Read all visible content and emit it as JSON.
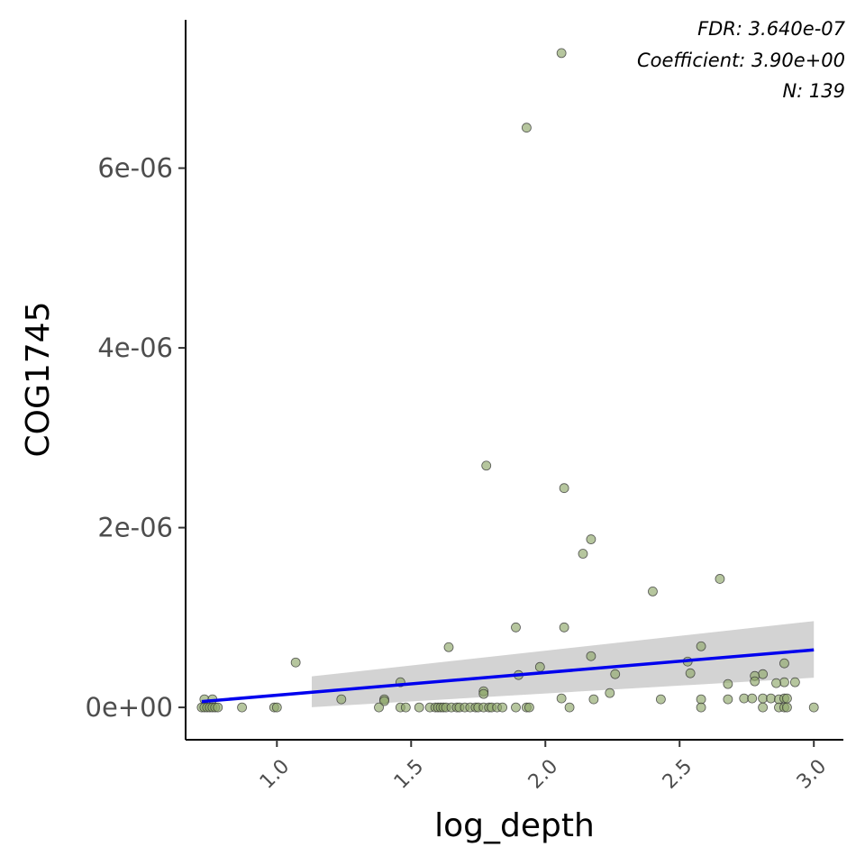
{
  "chart_data": {
    "type": "scatter",
    "xlabel": "log_depth",
    "ylabel": "COG1745",
    "xlim": [
      0.66,
      3.11
    ],
    "ylim": [
      -3.6e-07,
      7.65e-06
    ],
    "x_ticks": [
      1.0,
      1.5,
      2.0,
      2.5,
      3.0
    ],
    "x_tick_labels": [
      "1.0",
      "1.5",
      "2.0",
      "2.5",
      "3.0"
    ],
    "y_ticks": [
      0,
      2e-06,
      4e-06,
      6e-06
    ],
    "y_tick_labels": [
      "0e+00",
      "2e-06",
      "4e-06",
      "6e-06"
    ],
    "grid": false,
    "point_color": "#8fa86a",
    "point_stroke": "#333333",
    "line_color": "#0000ee",
    "band_color": "#c8c8c8",
    "annotations": [
      "FDR: 3.640e-07",
      "Coefficient: 3.90e+00",
      "N: 139"
    ],
    "regression": {
      "x": [
        0.72,
        3.0
      ],
      "y": [
        6.5e-08,
        6.4e-07
      ],
      "band_x": [
        1.13,
        3.0
      ],
      "band_lower": [
        2e-09,
        3.3e-07
      ],
      "band_upper": [
        3.45e-07,
        9.6e-07
      ]
    },
    "points": [
      {
        "x": 2.06,
        "y": 7.28e-06
      },
      {
        "x": 1.93,
        "y": 6.45e-06
      },
      {
        "x": 1.78,
        "y": 2.69e-06
      },
      {
        "x": 2.07,
        "y": 2.44e-06
      },
      {
        "x": 2.17,
        "y": 1.87e-06
      },
      {
        "x": 2.14,
        "y": 1.71e-06
      },
      {
        "x": 2.65,
        "y": 1.43e-06
      },
      {
        "x": 2.4,
        "y": 1.29e-06
      },
      {
        "x": 1.89,
        "y": 8.9e-07
      },
      {
        "x": 2.07,
        "y": 8.9e-07
      },
      {
        "x": 2.58,
        "y": 6.8e-07
      },
      {
        "x": 1.64,
        "y": 6.7e-07
      },
      {
        "x": 2.17,
        "y": 5.7e-07
      },
      {
        "x": 2.53,
        "y": 5.1e-07
      },
      {
        "x": 1.07,
        "y": 5e-07
      },
      {
        "x": 2.89,
        "y": 4.9e-07
      },
      {
        "x": 1.98,
        "y": 4.5e-07
      },
      {
        "x": 2.54,
        "y": 3.8e-07
      },
      {
        "x": 2.26,
        "y": 3.7e-07
      },
      {
        "x": 1.9,
        "y": 3.6e-07
      },
      {
        "x": 2.81,
        "y": 3.7e-07
      },
      {
        "x": 2.78,
        "y": 3.5e-07
      },
      {
        "x": 2.78,
        "y": 2.9e-07
      },
      {
        "x": 2.89,
        "y": 2.8e-07
      },
      {
        "x": 2.93,
        "y": 2.8e-07
      },
      {
        "x": 2.86,
        "y": 2.7e-07
      },
      {
        "x": 2.68,
        "y": 2.6e-07
      },
      {
        "x": 1.46,
        "y": 2.8e-07
      },
      {
        "x": 1.77,
        "y": 1.8e-07
      },
      {
        "x": 1.77,
        "y": 1.5e-07
      },
      {
        "x": 2.24,
        "y": 1.6e-07
      },
      {
        "x": 0.73,
        "y": 9e-08
      },
      {
        "x": 0.76,
        "y": 9e-08
      },
      {
        "x": 1.24,
        "y": 9e-08
      },
      {
        "x": 1.4,
        "y": 9e-08
      },
      {
        "x": 2.06,
        "y": 1e-07
      },
      {
        "x": 2.18,
        "y": 9e-08
      },
      {
        "x": 2.43,
        "y": 9e-08
      },
      {
        "x": 2.58,
        "y": 9e-08
      },
      {
        "x": 2.68,
        "y": 9e-08
      },
      {
        "x": 2.74,
        "y": 1e-07
      },
      {
        "x": 2.77,
        "y": 1e-07
      },
      {
        "x": 2.81,
        "y": 1e-07
      },
      {
        "x": 2.84,
        "y": 1e-07
      },
      {
        "x": 2.87,
        "y": 9e-08
      },
      {
        "x": 2.89,
        "y": 1e-07
      },
      {
        "x": 2.9,
        "y": 1e-07
      },
      {
        "x": 1.4,
        "y": 7e-08
      },
      {
        "x": 0.72,
        "y": 0
      },
      {
        "x": 0.73,
        "y": 0
      },
      {
        "x": 0.74,
        "y": 0
      },
      {
        "x": 0.75,
        "y": 0
      },
      {
        "x": 0.76,
        "y": 0
      },
      {
        "x": 0.77,
        "y": 0
      },
      {
        "x": 0.78,
        "y": 0
      },
      {
        "x": 0.87,
        "y": 0
      },
      {
        "x": 0.99,
        "y": 0
      },
      {
        "x": 1.0,
        "y": 0
      },
      {
        "x": 1.38,
        "y": 0
      },
      {
        "x": 1.46,
        "y": 0
      },
      {
        "x": 1.48,
        "y": 0
      },
      {
        "x": 1.53,
        "y": 0
      },
      {
        "x": 1.57,
        "y": 0
      },
      {
        "x": 1.59,
        "y": 0
      },
      {
        "x": 1.6,
        "y": 0
      },
      {
        "x": 1.61,
        "y": 0
      },
      {
        "x": 1.62,
        "y": 0
      },
      {
        "x": 1.63,
        "y": 0
      },
      {
        "x": 1.65,
        "y": 0
      },
      {
        "x": 1.67,
        "y": 0
      },
      {
        "x": 1.68,
        "y": 0
      },
      {
        "x": 1.7,
        "y": 0
      },
      {
        "x": 1.72,
        "y": 0
      },
      {
        "x": 1.74,
        "y": 0
      },
      {
        "x": 1.75,
        "y": 0
      },
      {
        "x": 1.77,
        "y": 0
      },
      {
        "x": 1.79,
        "y": 0
      },
      {
        "x": 1.8,
        "y": 0
      },
      {
        "x": 1.82,
        "y": 0
      },
      {
        "x": 1.84,
        "y": 0
      },
      {
        "x": 1.89,
        "y": 0
      },
      {
        "x": 1.93,
        "y": 0
      },
      {
        "x": 1.94,
        "y": 0
      },
      {
        "x": 2.09,
        "y": 0
      },
      {
        "x": 2.58,
        "y": 0
      },
      {
        "x": 2.81,
        "y": 0
      },
      {
        "x": 2.87,
        "y": 0
      },
      {
        "x": 2.89,
        "y": 0
      },
      {
        "x": 2.9,
        "y": 0
      },
      {
        "x": 3.0,
        "y": 0
      }
    ]
  }
}
